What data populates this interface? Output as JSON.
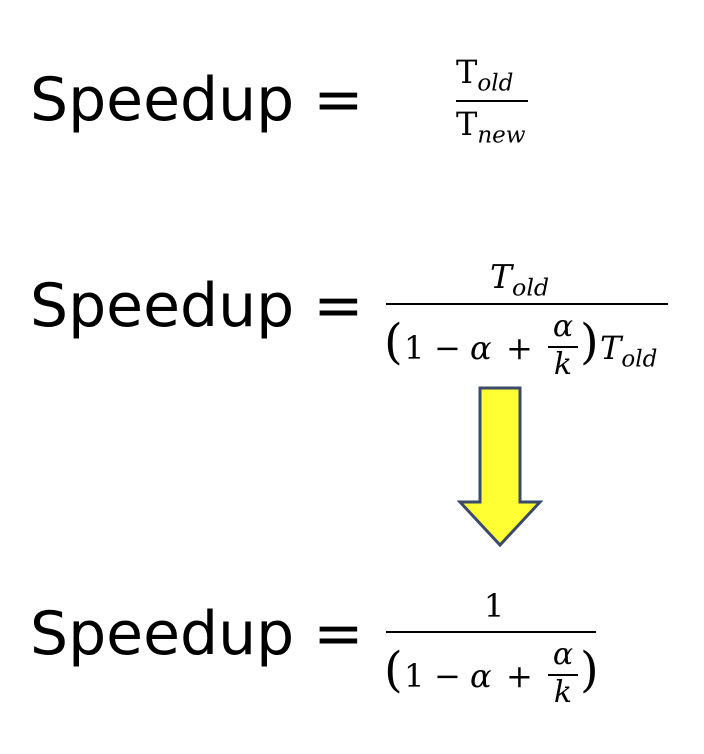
{
  "equations": [
    {
      "label": "Speedup =",
      "numerator": {
        "symbol": "T",
        "subscript": "old"
      },
      "denominator": {
        "symbol": "T",
        "subscript": "new"
      }
    },
    {
      "label": "Speedup =",
      "numerator": {
        "symbol": "T",
        "subscript": "old"
      },
      "denominator": {
        "one": "1",
        "minus": "−",
        "alpha": "α",
        "plus": "+",
        "frac_num": "α",
        "frac_den": "k",
        "symbol": "T",
        "subscript": "old"
      }
    },
    {
      "label": "Speedup =",
      "numerator": {
        "value": "1"
      },
      "denominator": {
        "one": "1",
        "minus": "−",
        "alpha": "α",
        "plus": "+",
        "frac_num": "α",
        "frac_den": "k"
      }
    }
  ],
  "arrow": {
    "fill": "#FFFF33",
    "stroke": "#3B4A6B",
    "direction": "down"
  }
}
